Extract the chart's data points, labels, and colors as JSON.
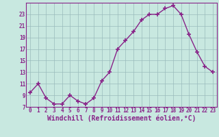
{
  "x": [
    0,
    1,
    2,
    3,
    4,
    5,
    6,
    7,
    8,
    9,
    10,
    11,
    12,
    13,
    14,
    15,
    16,
    17,
    18,
    19,
    20,
    21,
    22,
    23
  ],
  "y": [
    9.5,
    11,
    8.5,
    7.5,
    7.5,
    9,
    8,
    7.5,
    8.5,
    11.5,
    13,
    17,
    18.5,
    20,
    22,
    23,
    23,
    24,
    24.5,
    23,
    19.5,
    16.5,
    14,
    13
  ],
  "line_color": "#882288",
  "marker": "+",
  "marker_color": "#882288",
  "bg_color": "#C8E8E0",
  "plot_bg_color": "#C8E8E0",
  "grid_color": "#99BBBB",
  "xlabel": "Windchill (Refroidissement éolien,°C)",
  "xlabel_color": "#882288",
  "xlim": [
    -0.5,
    23.5
  ],
  "ylim": [
    7,
    25
  ],
  "yticks": [
    7,
    9,
    11,
    13,
    15,
    17,
    19,
    21,
    23
  ],
  "xticks": [
    0,
    1,
    2,
    3,
    4,
    5,
    6,
    7,
    8,
    9,
    10,
    11,
    12,
    13,
    14,
    15,
    16,
    17,
    18,
    19,
    20,
    21,
    22,
    23
  ],
  "tick_label_color": "#882288",
  "tick_label_size": 5.5,
  "xlabel_size": 7.0,
  "axis_color": "#882288",
  "marker_size": 4,
  "linewidth": 1.0
}
